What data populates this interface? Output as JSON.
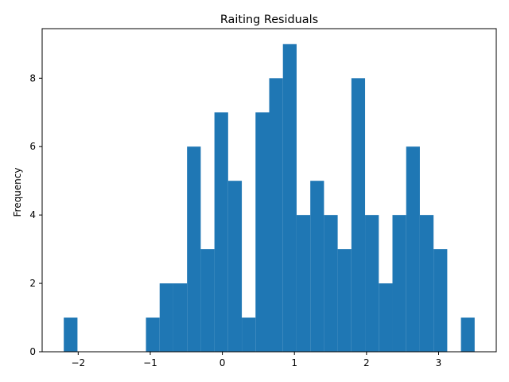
{
  "chart_data": {
    "type": "bar",
    "title": "Raiting Residuals",
    "xlabel": "",
    "ylabel": "Frequency",
    "bar_color": "#1f77b4",
    "xlim": [
      -2.5,
      3.8
    ],
    "ylim": [
      0,
      9.45
    ],
    "xticks": [
      -2,
      -1,
      0,
      1,
      2,
      3
    ],
    "xtick_labels": [
      "−2",
      "−1",
      "0",
      "1",
      "2",
      "3"
    ],
    "yticks": [
      0,
      2,
      4,
      6,
      8
    ],
    "ytick_labels": [
      "0",
      "2",
      "4",
      "6",
      "8"
    ],
    "bin_edges": [
      -2.2,
      -2.01,
      -1.82,
      -1.63,
      -1.44,
      -1.25,
      -1.06,
      -0.87,
      -0.68,
      -0.49,
      -0.3,
      -0.11,
      0.08,
      0.27,
      0.46,
      0.65,
      0.84,
      1.03,
      1.22,
      1.41,
      1.6,
      1.79,
      1.98,
      2.17,
      2.36,
      2.55,
      2.74,
      2.93,
      3.12,
      3.31,
      3.5
    ],
    "counts": [
      1,
      0,
      0,
      0,
      0,
      0,
      1,
      2,
      2,
      6,
      3,
      7,
      5,
      1,
      7,
      8,
      9,
      4,
      5,
      4,
      3,
      8,
      4,
      2,
      4,
      6,
      4,
      3,
      0,
      1
    ]
  }
}
